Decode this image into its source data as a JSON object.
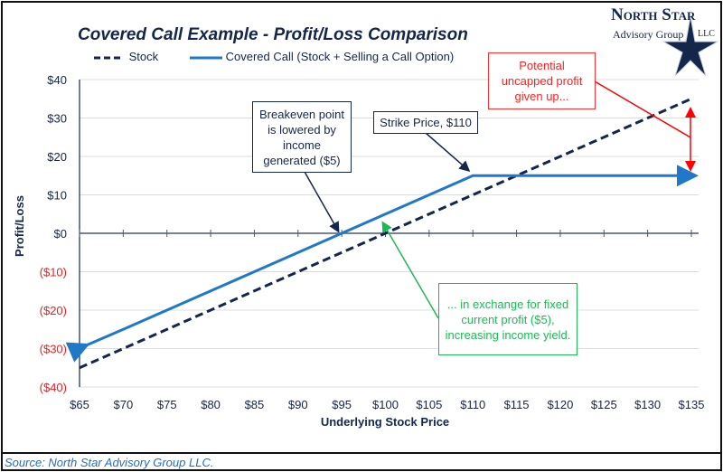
{
  "logo": {
    "line1": "North Star",
    "line2": "Advisory Group",
    "suffix": "LLC"
  },
  "source": "Source: North Star Advisory Group LLC.",
  "colors": {
    "stock": "#14264a",
    "covered_call": "#1f78c8",
    "negative_labels": "#e82020",
    "annotation_red": "#ff0000",
    "annotation_green": "#1db954",
    "annotation_navy": "#14264a"
  },
  "annotations": {
    "breakeven": "Breakeven point is lowered by income generated ($5)",
    "strike": "Strike Price, $110",
    "upside": "Potential uncapped profit given up...",
    "exchange": "... in exchange for fixed current profit ($5), increasing income yield."
  },
  "chart_data": {
    "type": "line",
    "title": "Covered Call Example - Profit/Loss Comparison",
    "xlabel": "Underlying Stock Price",
    "ylabel": "Profit/Loss",
    "x": [
      65,
      70,
      75,
      80,
      85,
      90,
      95,
      100,
      105,
      110,
      115,
      120,
      125,
      130,
      135
    ],
    "xtick_labels": [
      "$65",
      "$70",
      "$75",
      "$80",
      "$85",
      "$90",
      "$95",
      "$100",
      "$105",
      "$110",
      "$115",
      "$120",
      "$125",
      "$130",
      "$135"
    ],
    "yticks": [
      40,
      30,
      20,
      10,
      0,
      -10,
      -20,
      -30,
      -40
    ],
    "ytick_labels": [
      "$40",
      "$30",
      "$20",
      "$10",
      "$0",
      "($10)",
      "($20)",
      "($30)",
      "($40)"
    ],
    "xlim": [
      65,
      135
    ],
    "ylim": [
      -40,
      40
    ],
    "grid": "horizontal",
    "legend": "top",
    "series": [
      {
        "name": "Stock",
        "style": "dashed",
        "values": [
          -35,
          -30,
          -25,
          -20,
          -15,
          -10,
          -5,
          0,
          5,
          10,
          15,
          20,
          25,
          30,
          35
        ]
      },
      {
        "name": "Covered Call (Stock + Selling a Call Option)",
        "style": "solid",
        "values": [
          -30,
          -25,
          -20,
          -15,
          -10,
          -5,
          0,
          5,
          10,
          15,
          15,
          15,
          15,
          15,
          15
        ]
      }
    ]
  }
}
